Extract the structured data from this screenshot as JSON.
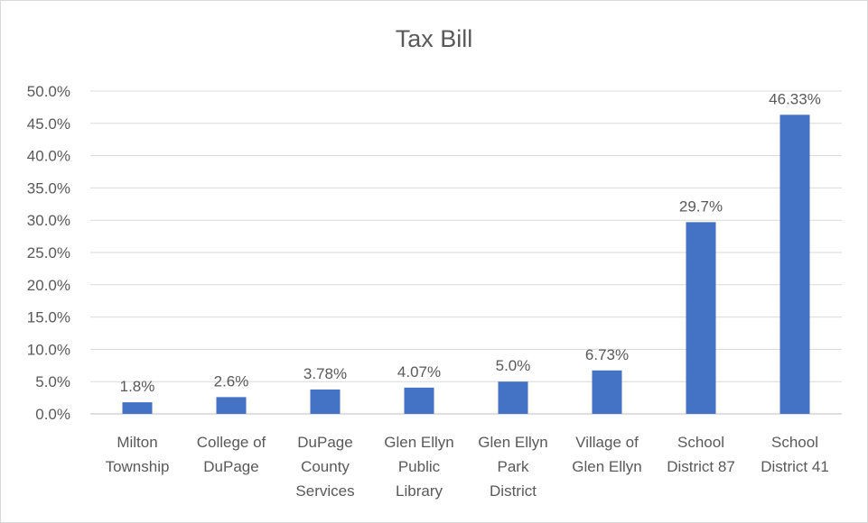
{
  "chart_data": {
    "type": "bar",
    "title": "Tax Bill",
    "xlabel": "",
    "ylabel": "",
    "ylim": [
      0,
      50
    ],
    "yticks": [
      "0.0%",
      "5.0%",
      "10.0%",
      "15.0%",
      "20.0%",
      "25.0%",
      "30.0%",
      "35.0%",
      "40.0%",
      "45.0%",
      "50.0%"
    ],
    "categories": [
      [
        "Milton",
        "Township"
      ],
      [
        "College of",
        "DuPage"
      ],
      [
        "DuPage",
        "County",
        "Services"
      ],
      [
        "Glen Ellyn",
        "Public",
        "Library"
      ],
      [
        "Glen Ellyn",
        "Park",
        "District"
      ],
      [
        "Village of",
        "Glen Ellyn"
      ],
      [
        "School",
        "District 87"
      ],
      [
        "School",
        "District 41"
      ]
    ],
    "values": [
      1.8,
      2.6,
      3.78,
      4.07,
      5.0,
      6.73,
      29.7,
      46.33
    ],
    "data_labels": [
      "1.8%",
      "2.6%",
      "3.78%",
      "4.07%",
      "5.0%",
      "6.73%",
      "29.7%",
      "46.33%"
    ],
    "grid": true,
    "legend": "none",
    "colors": {
      "bar": "#4472c4",
      "grid": "#d9d9d9",
      "text": "#595959"
    }
  }
}
